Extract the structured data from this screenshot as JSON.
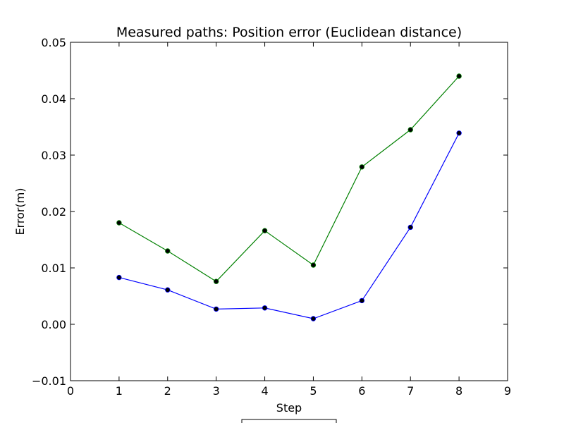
{
  "chart_data": {
    "type": "line",
    "title": "Measured paths: Position error (Euclidean distance)",
    "xlabel": "Step",
    "ylabel": "Error(m)",
    "xlim": [
      0,
      9
    ],
    "ylim": [
      -0.01,
      0.05
    ],
    "xticks": [
      "0",
      "1",
      "2",
      "3",
      "4",
      "5",
      "6",
      "7",
      "8",
      "9"
    ],
    "yticks": [
      "−0.01",
      "0.00",
      "0.01",
      "0.02",
      "0.03",
      "0.04",
      "0.05"
    ],
    "ytick_values": [
      -0.01,
      0.0,
      0.01,
      0.02,
      0.03,
      0.04,
      0.05
    ],
    "xtick_values": [
      0,
      1,
      2,
      3,
      4,
      5,
      6,
      7,
      8,
      9
    ],
    "grid": false,
    "x": [
      1,
      2,
      3,
      4,
      5,
      6,
      7,
      8
    ],
    "series": [
      {
        "color": "#008000",
        "values": [
          0.018,
          0.013,
          0.0076,
          0.0166,
          0.0105,
          0.0279,
          0.0345,
          0.044
        ]
      },
      {
        "color": "#0000ff",
        "values": [
          0.0083,
          0.0061,
          0.0027,
          0.0029,
          0.001,
          0.0042,
          0.0172,
          0.0339
        ]
      }
    ],
    "marker_color": "#000000"
  }
}
